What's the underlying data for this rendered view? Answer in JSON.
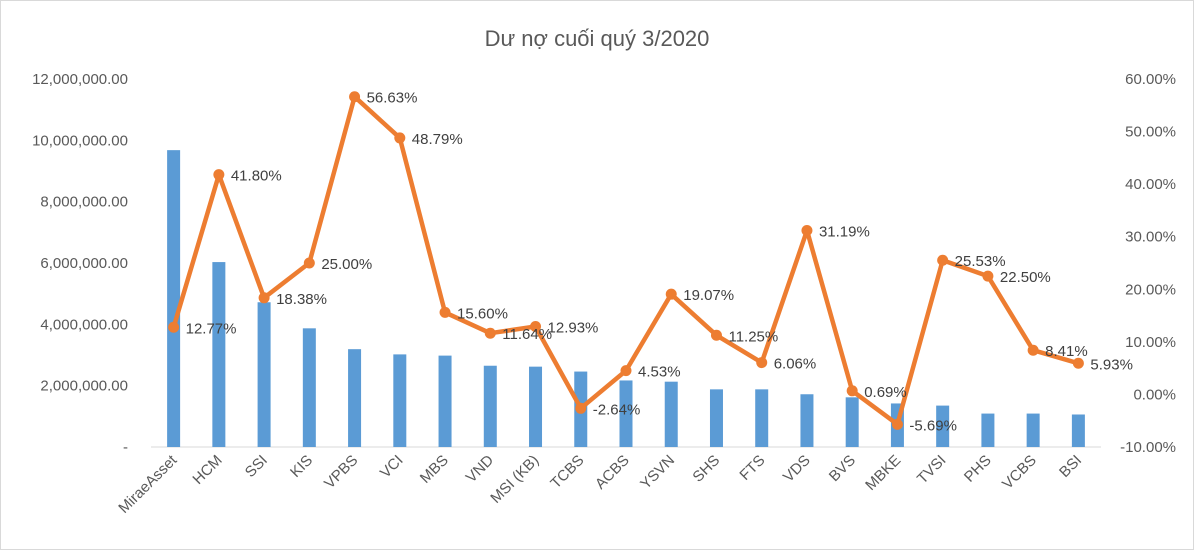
{
  "chart_data": {
    "type": "bar",
    "combo": "bar+line",
    "title": "Dư nợ cuối quý 3/2020",
    "categories": [
      "MiraeAsset",
      "HCM",
      "SSI",
      "KIS",
      "VPBS",
      "VCI",
      "MBS",
      "VND",
      "MSI (KB)",
      "TCBS",
      "ACBS",
      "YSVN",
      "SHS",
      "FTS",
      "VDS",
      "BVS",
      "MBKE",
      "TVSI",
      "PHS",
      "VCBS",
      "BSI"
    ],
    "series": [
      {
        "type": "bar",
        "axis": "left",
        "color": "#5b9bd5",
        "values": [
          9680000,
          6030000,
          4720000,
          3870000,
          3190000,
          3020000,
          2980000,
          2650000,
          2620000,
          2460000,
          2170000,
          2130000,
          1880000,
          1880000,
          1720000,
          1620000,
          1420000,
          1350000,
          1090000,
          1090000,
          1060000
        ]
      },
      {
        "type": "line",
        "axis": "right",
        "color": "#ed7d31",
        "values": [
          12.77,
          41.8,
          18.38,
          25.0,
          56.63,
          48.79,
          15.6,
          11.64,
          12.93,
          -2.64,
          4.53,
          19.07,
          11.25,
          6.06,
          31.19,
          0.69,
          -5.69,
          25.53,
          22.5,
          8.41,
          5.93
        ],
        "labels": [
          "12.77%",
          "41.80%",
          "18.38%",
          "25.00%",
          "56.63%",
          "48.79%",
          "15.60%",
          "11.64%",
          "12.93%",
          "-2.64%",
          "4.53%",
          "19.07%",
          "11.25%",
          "6.06%",
          "31.19%",
          "0.69%",
          "-5.69%",
          "25.53%",
          "22.50%",
          "8.41%",
          "5.93%"
        ]
      }
    ],
    "y_left": {
      "range": [
        0,
        12000000
      ],
      "ticks": [
        0,
        2000000,
        4000000,
        6000000,
        8000000,
        10000000,
        12000000
      ],
      "tick_labels": [
        "-",
        "2,000,000.00",
        "4,000,000.00",
        "6,000,000.00",
        "8,000,000.00",
        "10,000,000.00",
        "12,000,000.00"
      ]
    },
    "y_right": {
      "range": [
        -10,
        60
      ],
      "ticks": [
        -10,
        0,
        10,
        20,
        30,
        40,
        50,
        60
      ],
      "tick_labels": [
        "-10.00%",
        "0.00%",
        "10.00%",
        "20.00%",
        "30.00%",
        "40.00%",
        "50.00%",
        "60.00%"
      ]
    },
    "xlabel": "",
    "ylabel": "",
    "grid": false,
    "legend": "none"
  }
}
